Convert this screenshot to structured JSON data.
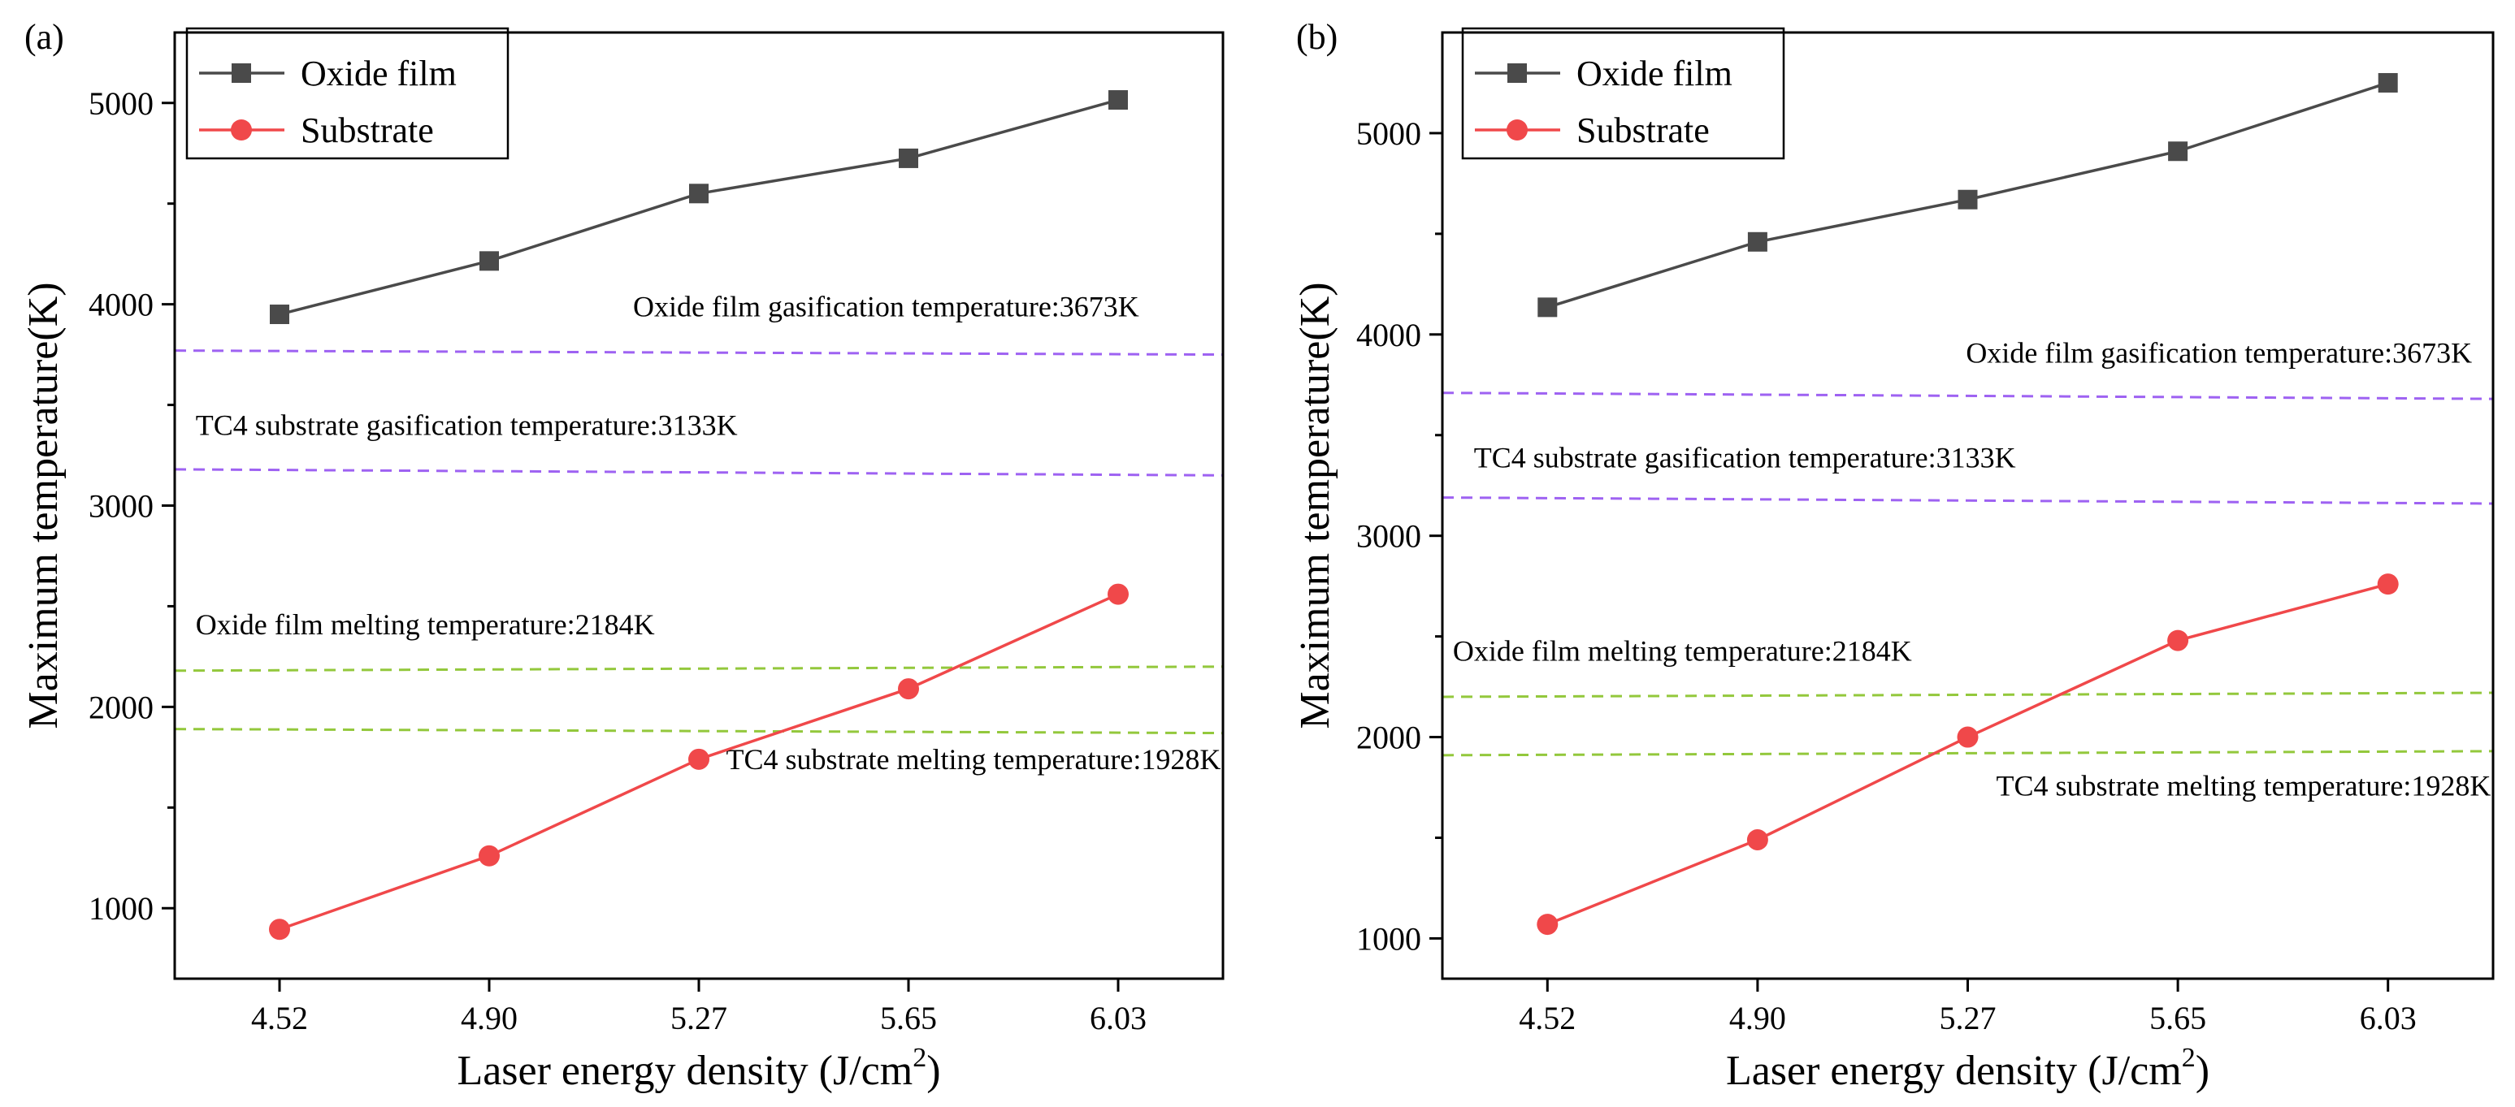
{
  "chart_data": [
    {
      "panel": "(a)",
      "type": "line",
      "categories": [
        "4.52",
        "4.90",
        "5.27",
        "5.65",
        "6.03"
      ],
      "xlabel": "Laser energy density (J/cm",
      "xlabel_sup": "2",
      "xlabel_end": ")",
      "ylabel": "Maximum temperature(K)",
      "ylim": [
        650,
        5350
      ],
      "yticks": [
        1000,
        2000,
        3000,
        4000,
        5000
      ],
      "legend_position": "top-left",
      "series": [
        {
          "name": "Oxide film",
          "marker": "square",
          "color": "#4a4a4a",
          "values": [
            3950,
            4215,
            4550,
            4725,
            5015
          ]
        },
        {
          "name": "Substrate",
          "marker": "circle",
          "color": "#f0484a",
          "values": [
            895,
            1260,
            1740,
            2090,
            2560
          ]
        }
      ],
      "reference_lines": [
        {
          "y": 3770,
          "y_end": 3750,
          "color": "#9e62f2",
          "text": "Oxide film gasification temperature:3673K",
          "label_y": 3940,
          "label_x": 0.92,
          "anchor": "end"
        },
        {
          "y": 3180,
          "y_end": 3150,
          "color": "#9e62f2",
          "text": "TC4 substrate gasification temperature:3133K",
          "label_y": 3350,
          "label_x": 0.02,
          "anchor": "start"
        },
        {
          "y": 2180,
          "y_end": 2200,
          "color": "#93c83c",
          "text": "Oxide film melting temperature:2184K",
          "label_y": 2360,
          "label_x": 0.02,
          "anchor": "start"
        },
        {
          "y": 1890,
          "y_end": 1870,
          "color": "#93c83c",
          "text": "TC4 substrate melting temperature:1928K",
          "label_y": 1690,
          "label_x": 0.998,
          "anchor": "end"
        }
      ]
    },
    {
      "panel": "(b)",
      "type": "line",
      "categories": [
        "4.52",
        "4.90",
        "5.27",
        "5.65",
        "6.03"
      ],
      "xlabel": "Laser energy density (J/cm",
      "xlabel_sup": "2",
      "xlabel_end": ")",
      "ylabel": "Maximum temperature(K)",
      "ylim": [
        800,
        5500
      ],
      "yticks": [
        1000,
        2000,
        3000,
        4000,
        5000
      ],
      "legend_position": "top-left",
      "series": [
        {
          "name": "Oxide film",
          "marker": "square",
          "color": "#4a4a4a",
          "values": [
            4135,
            4460,
            4670,
            4910,
            5250
          ]
        },
        {
          "name": "Substrate",
          "marker": "circle",
          "color": "#f0484a",
          "values": [
            1070,
            1490,
            2000,
            2480,
            2760
          ]
        }
      ],
      "reference_lines": [
        {
          "y": 3710,
          "y_end": 3680,
          "color": "#9e62f2",
          "text": "Oxide film gasification temperature:3673K",
          "label_y": 3860,
          "label_x": 0.98,
          "anchor": "end"
        },
        {
          "y": 3190,
          "y_end": 3160,
          "color": "#9e62f2",
          "text": "TC4 substrate gasification temperature:3133K",
          "label_y": 3340,
          "label_x": 0.03,
          "anchor": "start"
        },
        {
          "y": 2200,
          "y_end": 2220,
          "color": "#93c83c",
          "text": "Oxide film melting temperature:2184K",
          "label_y": 2380,
          "label_x": 0.01,
          "anchor": "start"
        },
        {
          "y": 1910,
          "y_end": 1930,
          "color": "#93c83c",
          "text": "TC4 substrate melting temperature:1928K",
          "label_y": 1710,
          "label_x": 0.998,
          "anchor": "end"
        }
      ]
    }
  ]
}
